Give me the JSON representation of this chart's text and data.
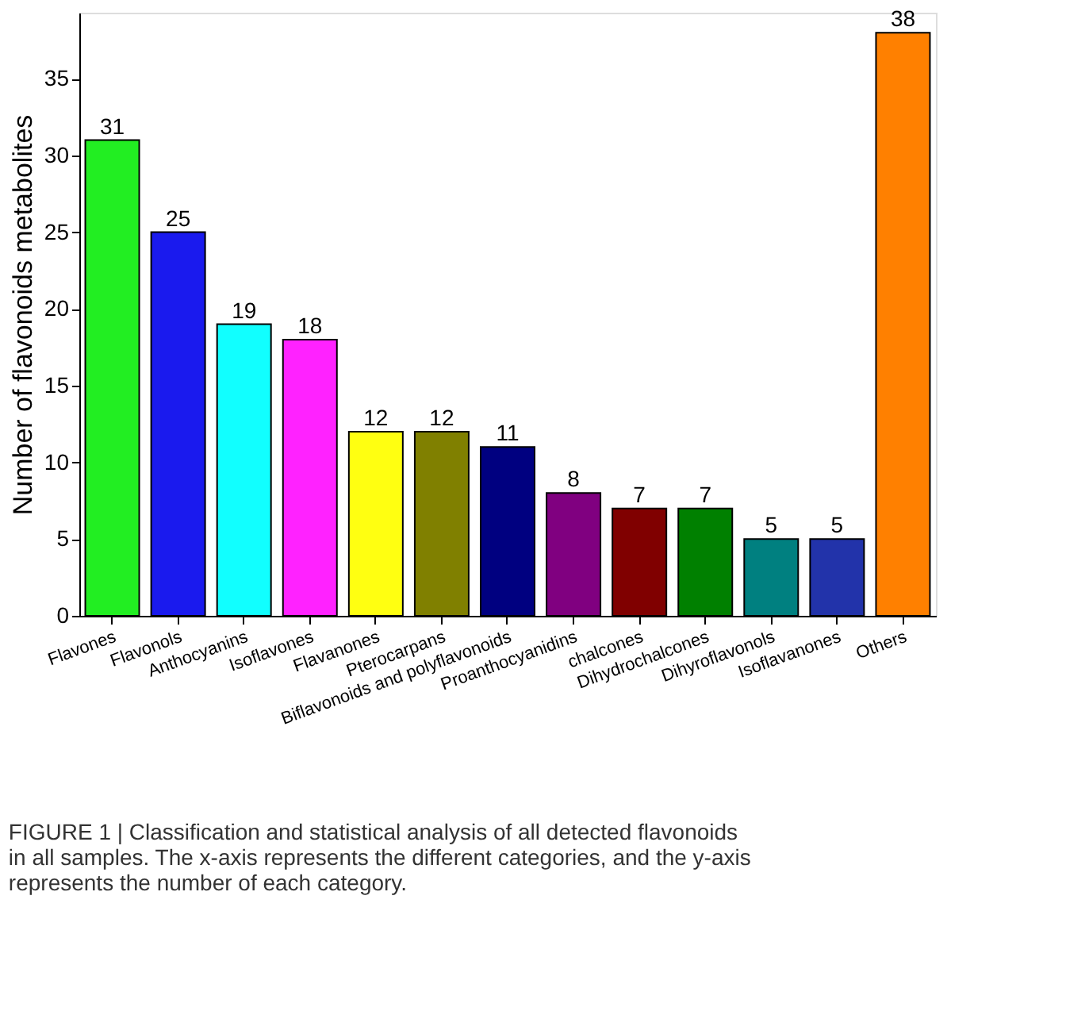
{
  "chart_data": {
    "type": "bar",
    "ylabel": "Number of flavonoids metabolites",
    "categories": [
      "Flavones",
      "Flavonols",
      "Anthocyanins",
      "Isoflavones",
      "Flavanones",
      "Pterocarpans",
      "Biflavonoids and polyflavonoids",
      "Proanthocyanidins",
      "chalcones",
      "Dihydrochalcones",
      "Dihyroflavonols",
      "Isoflavanones",
      "Others"
    ],
    "values": [
      31,
      25,
      19,
      18,
      12,
      12,
      11,
      8,
      7,
      7,
      5,
      5,
      38
    ],
    "colors": [
      "#22ee22",
      "#1a1aee",
      "#11ffff",
      "#ff22ff",
      "#ffff11",
      "#808000",
      "#000080",
      "#800080",
      "#800000",
      "#008000",
      "#008080",
      "#2233aa",
      "#ff8000"
    ],
    "ylim": [
      0,
      39.3
    ],
    "yticks": [
      0,
      5,
      10,
      15,
      20,
      25,
      30,
      35
    ],
    "grid": false,
    "data_labels": true,
    "annotations": [
      "FIGURE 1 | Classification and statistical analysis of all detected flavonoids in all samples. The x-axis represents the different categories, and the y-axis represents the number of each category."
    ]
  }
}
